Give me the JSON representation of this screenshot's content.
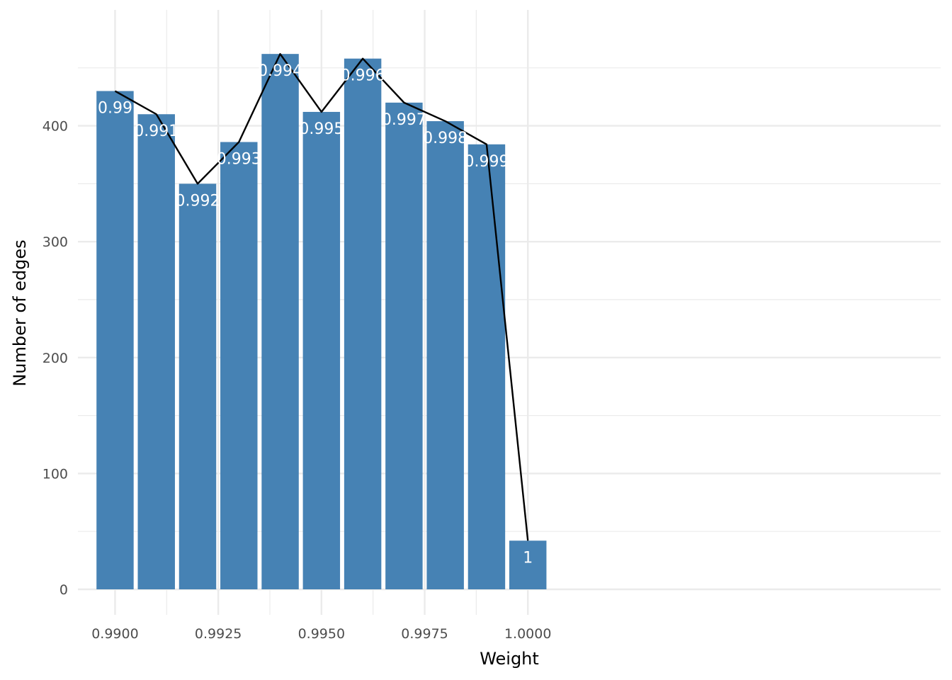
{
  "chart_data": {
    "type": "bar",
    "title": "",
    "xlabel": "Weight",
    "ylabel": "Number of edges",
    "x": [
      0.99,
      0.991,
      0.992,
      0.993,
      0.994,
      0.995,
      0.996,
      0.997,
      0.998,
      0.999,
      1.0
    ],
    "values": [
      430,
      410,
      350,
      386,
      462,
      412,
      458,
      420,
      404,
      384,
      42
    ],
    "bar_labels": [
      "0.99",
      "0.991",
      "0.992",
      "0.993",
      "0.994",
      "0.995",
      "0.996",
      "0.997",
      "0.998",
      "0.999",
      "1"
    ],
    "line_values": [
      430,
      410,
      350,
      386,
      462,
      412,
      458,
      420,
      404,
      384,
      42
    ],
    "xlim": [
      0.9891,
      1.01
    ],
    "ylim": [
      -22,
      500
    ],
    "x_ticks": [
      0.99,
      0.9925,
      0.995,
      0.9975,
      1.0
    ],
    "x_tick_labels": [
      "0.9900",
      "0.9925",
      "0.9950",
      "0.9975",
      "1.0000"
    ],
    "y_ticks": [
      0,
      100,
      200,
      300,
      400
    ],
    "y_tick_labels": [
      "0",
      "100",
      "200",
      "300",
      "400"
    ],
    "grid": true,
    "colors": {
      "bar": "#4682B4",
      "line": "#000000",
      "grid": "#ebebeb",
      "label": "#ffffff"
    }
  }
}
